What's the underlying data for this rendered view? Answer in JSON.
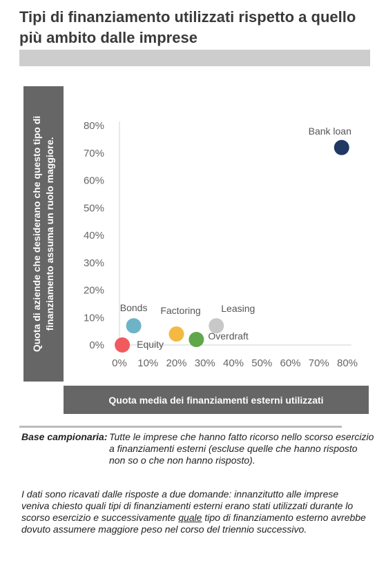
{
  "header": {
    "title": "Tipi di finanziamento utilizzati rispetto a quello più ambito dalle imprese"
  },
  "chart_data": {
    "type": "scatter",
    "ylabel": "Quota di aziende che desiderano che questo tipo di finanziamento assuma un ruolo maggiore.",
    "xlabel": "Quota media dei finanziamenti esterni utilizzati",
    "xlim": [
      0,
      80
    ],
    "ylim": [
      0,
      80
    ],
    "xticks": [
      "0%",
      "10%",
      "20%",
      "30%",
      "40%",
      "50%",
      "60%",
      "70%",
      "80%"
    ],
    "yticks": [
      "0%",
      "10%",
      "20%",
      "30%",
      "40%",
      "50%",
      "60%",
      "70%",
      "80%"
    ],
    "grid": false,
    "points": [
      {
        "label": "Bank loan",
        "x": 78,
        "y": 72,
        "color": "#1f3864"
      },
      {
        "label": "Bonds",
        "x": 5,
        "y": 7,
        "color": "#6fb3c9"
      },
      {
        "label": "Equity",
        "x": 1,
        "y": 0,
        "color": "#f05a5f"
      },
      {
        "label": "Factoring",
        "x": 20,
        "y": 4,
        "color": "#f3b942"
      },
      {
        "label": "Overdraft",
        "x": 27,
        "y": 2,
        "color": "#5fa84a"
      },
      {
        "label": "Leasing",
        "x": 34,
        "y": 7,
        "color": "#c8c8c8"
      }
    ]
  },
  "footer": {
    "base_label": "Base campionaria:",
    "base_text": "Tutte le imprese che hanno fatto ricorso nello scorso esercizio a finanziamenti esterni (escluse quelle che hanno risposto non so o che non hanno risposto).",
    "note_part1": "I dati sono ricavati dalle risposte a due domande: innanzitutto alle imprese veniva chiesto quali tipi di finanziamenti esterni erano stati utilizzati durante lo scorso esercizio e successivamente ",
    "note_underlined": "quale",
    "note_part2": " tipo di finanziamento esterno avrebbe dovuto assumere maggiore peso nel corso del triennio successivo."
  }
}
